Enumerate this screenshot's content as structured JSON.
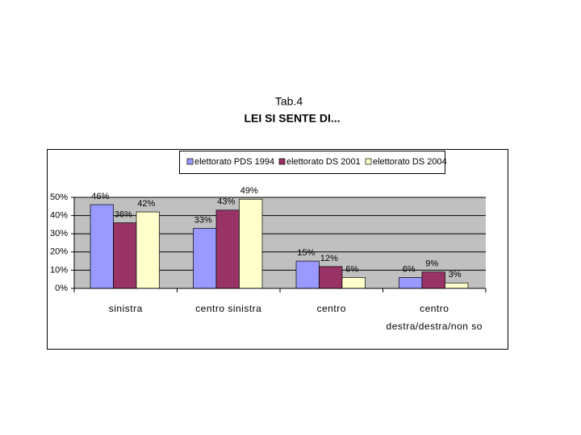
{
  "chart_data": {
    "type": "bar",
    "title": "Tab.4",
    "subtitle": "LEI SI SENTE DI...",
    "categories": [
      "sinistra",
      "centro sinistra",
      "centro",
      "centro destra/destra/non so"
    ],
    "series": [
      {
        "name": "elettorato PDS 1994",
        "color": "#9999ff",
        "values": [
          46,
          33,
          15,
          6
        ],
        "value_labels": [
          "46%",
          "33%",
          "15%",
          "6%"
        ]
      },
      {
        "name": "elettorato DS 2001",
        "color": "#993366",
        "values": [
          36,
          43,
          12,
          9
        ],
        "value_labels": [
          "36%",
          "43%",
          "12%",
          "9%"
        ]
      },
      {
        "name": "elettorato DS 2004",
        "color": "#ffffcc",
        "values": [
          42,
          49,
          6,
          3
        ],
        "value_labels": [
          "42%",
          "49%",
          "6%",
          "3%"
        ]
      }
    ],
    "ylim": [
      0,
      50
    ],
    "yticks": [
      {
        "value": 0,
        "label": "0%"
      },
      {
        "value": 10,
        "label": "10%"
      },
      {
        "value": 20,
        "label": "20%"
      },
      {
        "value": 30,
        "label": "30%"
      },
      {
        "value": 40,
        "label": "40%"
      },
      {
        "value": 50,
        "label": "50%"
      }
    ],
    "grid": true
  }
}
